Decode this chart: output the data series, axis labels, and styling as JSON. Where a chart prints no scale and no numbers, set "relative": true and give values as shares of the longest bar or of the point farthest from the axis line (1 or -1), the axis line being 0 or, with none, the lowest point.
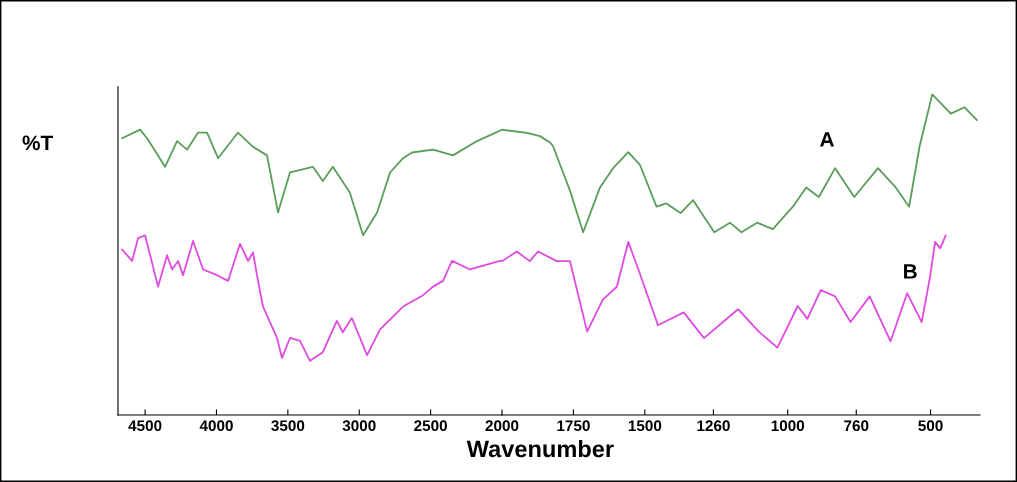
{
  "chart_data": [
    {
      "type": "line",
      "xlabel": "Wavenumber",
      "ylabel": "%T",
      "relative": true,
      "xlim": [
        4690,
        2000
      ],
      "xticks": [
        4500,
        4000,
        3500,
        3000,
        2500,
        2000
      ],
      "marker": "none",
      "line_style": "solid",
      "series": [
        {
          "color": "#5a9e5a",
          "x": [
            4661,
            4535,
            4486,
            4360,
            4276,
            4206,
            4129,
            4066,
            3989,
            3849,
            3744,
            3646,
            3569,
            3485,
            3325,
            3255,
            3185,
            3066,
            2973,
            2875,
            2784,
            2693,
            2630,
            2483,
            2343,
            2175,
            2000
          ],
          "values": [
            0.97,
            1.0,
            0.97,
            0.87,
            0.96,
            0.93,
            0.99,
            0.99,
            0.9,
            0.99,
            0.94,
            0.91,
            0.71,
            0.85,
            0.87,
            0.82,
            0.87,
            0.78,
            0.63,
            0.71,
            0.85,
            0.9,
            0.92,
            0.93,
            0.91,
            0.96,
            1.0
          ]
        },
        {
          "color": "#e04ae0",
          "x": [
            4661,
            4591,
            4549,
            4500,
            4409,
            4346,
            4311,
            4269,
            4234,
            4164,
            4094,
            3996,
            3919,
            3835,
            3779,
            3744,
            3709,
            3674,
            3576,
            3541,
            3485,
            3415,
            3345,
            3255,
            3157,
            3115,
            3052,
            2945,
            2854,
            2693,
            2553,
            2483,
            2413,
            2350,
            2224,
            2014,
            2000
          ],
          "values": [
            0.58,
            0.54,
            0.62,
            0.63,
            0.45,
            0.56,
            0.51,
            0.54,
            0.49,
            0.61,
            0.51,
            0.49,
            0.47,
            0.6,
            0.54,
            0.57,
            0.47,
            0.38,
            0.27,
            0.2,
            0.27,
            0.26,
            0.19,
            0.22,
            0.33,
            0.29,
            0.34,
            0.21,
            0.3,
            0.38,
            0.42,
            0.45,
            0.47,
            0.54,
            0.51,
            0.54,
            0.54
          ]
        }
      ]
    },
    {
      "type": "line",
      "relative": true,
      "xlim": [
        2000,
        327
      ],
      "xticks": [
        1750,
        1500,
        1260,
        1000,
        760,
        500
      ],
      "marker": "none",
      "line_style": "solid",
      "annotations": [
        "A",
        "B"
      ],
      "series": [
        {
          "color": "#5a9e5a",
          "x": [
            2000,
            1913,
            1867,
            1832,
            1822,
            1762,
            1716,
            1657,
            1611,
            1558,
            1517,
            1459,
            1425,
            1375,
            1331,
            1257,
            1202,
            1162,
            1107,
            1052,
            982,
            935,
            891,
            834,
            767,
            684,
            622,
            575,
            538,
            494,
            429,
            381,
            338
          ],
          "values": [
            0.89,
            0.88,
            0.87,
            0.85,
            0.84,
            0.7,
            0.57,
            0.71,
            0.77,
            0.82,
            0.78,
            0.65,
            0.66,
            0.63,
            0.67,
            0.57,
            0.6,
            0.57,
            0.6,
            0.58,
            0.65,
            0.71,
            0.68,
            0.77,
            0.68,
            0.77,
            0.71,
            0.65,
            0.84,
            1.0,
            0.94,
            0.96,
            0.92
          ]
        },
        {
          "color": "#e04ae0",
          "x": [
            2000,
            1948,
            1903,
            1874,
            1808,
            1762,
            1702,
            1647,
            1598,
            1558,
            1517,
            1454,
            1364,
            1293,
            1174,
            1101,
            1036,
            965,
            931,
            884,
            834,
            780,
            713,
            640,
            582,
            531,
            502,
            484,
            466,
            447
          ],
          "values": [
            0.48,
            0.51,
            0.48,
            0.51,
            0.48,
            0.48,
            0.26,
            0.36,
            0.4,
            0.54,
            0.44,
            0.28,
            0.32,
            0.24,
            0.33,
            0.26,
            0.21,
            0.34,
            0.3,
            0.39,
            0.37,
            0.29,
            0.37,
            0.23,
            0.38,
            0.29,
            0.43,
            0.54,
            0.52,
            0.56
          ]
        }
      ]
    }
  ]
}
